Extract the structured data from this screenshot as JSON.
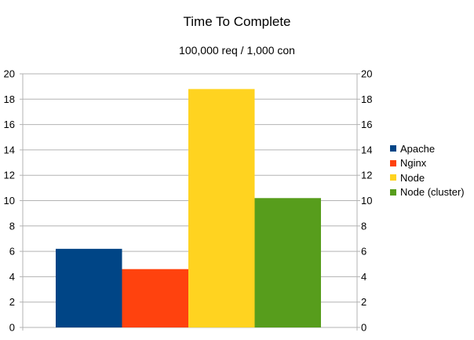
{
  "chart_data": {
    "type": "bar",
    "title": "Time To Complete",
    "subtitle": "100,000 req / 1,000 con",
    "xlabel": "",
    "ylabel": "",
    "ylim": [
      0,
      20
    ],
    "yticks": [
      "0",
      "2",
      "4",
      "6",
      "8",
      "10",
      "12",
      "14",
      "16",
      "18",
      "20"
    ],
    "secondary_y_axis": true,
    "grid": true,
    "legend_position": "right",
    "categories": [
      ""
    ],
    "series": [
      {
        "name": "Apache",
        "values": [
          6.2
        ],
        "color": "#004586"
      },
      {
        "name": "Nginx",
        "values": [
          4.6
        ],
        "color": "#ff420e"
      },
      {
        "name": "Node",
        "values": [
          18.8
        ],
        "color": "#ffd320"
      },
      {
        "name": "Node (cluster)",
        "values": [
          10.2
        ],
        "color": "#579d1c"
      }
    ]
  }
}
